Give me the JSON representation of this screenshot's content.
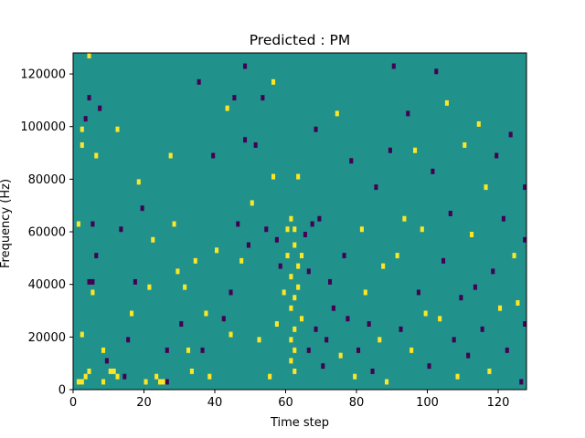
{
  "chart_data": {
    "type": "heatmap",
    "title": "Predicted : PM",
    "xlabel": "Time step",
    "ylabel": "Frequency (Hz)",
    "xlim": [
      0,
      128
    ],
    "ylim": [
      0,
      128000
    ],
    "x_ticks": [
      0,
      20,
      40,
      60,
      80,
      100,
      120
    ],
    "y_ticks": [
      0,
      20000,
      40000,
      60000,
      80000,
      100000,
      120000
    ],
    "y_tick_labels": [
      "0",
      "20000",
      "40000",
      "60000",
      "80000",
      "100000",
      "120000"
    ],
    "colormap": "viridis",
    "value_levels": [
      -1,
      0,
      1
    ],
    "colors": {
      "low": "#440154",
      "mid": "#21918c",
      "high": "#fde725"
    },
    "background_value": 0,
    "grid": false,
    "cells": [
      {
        "t": 1,
        "f": 2000,
        "v": 1
      },
      {
        "t": 2,
        "f": 2000,
        "v": 1
      },
      {
        "t": 3,
        "f": 4000,
        "v": 1
      },
      {
        "t": 4,
        "f": 6000,
        "v": 1
      },
      {
        "t": 4,
        "f": 40000,
        "v": -1
      },
      {
        "t": 5,
        "f": 40000,
        "v": -1
      },
      {
        "t": 4,
        "f": 126000,
        "v": 1
      },
      {
        "t": 2,
        "f": 20000,
        "v": 1
      },
      {
        "t": 1,
        "f": 62000,
        "v": 1
      },
      {
        "t": 2,
        "f": 92000,
        "v": 1
      },
      {
        "t": 2,
        "f": 98000,
        "v": 1
      },
      {
        "t": 3,
        "f": 102000,
        "v": -1
      },
      {
        "t": 4,
        "f": 110000,
        "v": -1
      },
      {
        "t": 5,
        "f": 36000,
        "v": 1
      },
      {
        "t": 5,
        "f": 62000,
        "v": -1
      },
      {
        "t": 6,
        "f": 50000,
        "v": -1
      },
      {
        "t": 6,
        "f": 88000,
        "v": 1
      },
      {
        "t": 7,
        "f": 106000,
        "v": -1
      },
      {
        "t": 8,
        "f": 2000,
        "v": 1
      },
      {
        "t": 8,
        "f": 14000,
        "v": 1
      },
      {
        "t": 9,
        "f": 10000,
        "v": -1
      },
      {
        "t": 10,
        "f": 6000,
        "v": 1
      },
      {
        "t": 11,
        "f": 6000,
        "v": 1
      },
      {
        "t": 12,
        "f": 4000,
        "v": 1
      },
      {
        "t": 12,
        "f": 98000,
        "v": 1
      },
      {
        "t": 13,
        "f": 60000,
        "v": -1
      },
      {
        "t": 14,
        "f": 4000,
        "v": -1
      },
      {
        "t": 15,
        "f": 18000,
        "v": -1
      },
      {
        "t": 16,
        "f": 28000,
        "v": 1
      },
      {
        "t": 17,
        "f": 40000,
        "v": -1
      },
      {
        "t": 18,
        "f": 78000,
        "v": 1
      },
      {
        "t": 19,
        "f": 68000,
        "v": -1
      },
      {
        "t": 20,
        "f": 2000,
        "v": 1
      },
      {
        "t": 21,
        "f": 38000,
        "v": 1
      },
      {
        "t": 22,
        "f": 56000,
        "v": 1
      },
      {
        "t": 23,
        "f": 4000,
        "v": 1
      },
      {
        "t": 24,
        "f": 2000,
        "v": 1
      },
      {
        "t": 25,
        "f": 2000,
        "v": 1
      },
      {
        "t": 26,
        "f": 2000,
        "v": -1
      },
      {
        "t": 26,
        "f": 14000,
        "v": -1
      },
      {
        "t": 27,
        "f": 88000,
        "v": 1
      },
      {
        "t": 28,
        "f": 62000,
        "v": 1
      },
      {
        "t": 29,
        "f": 44000,
        "v": 1
      },
      {
        "t": 30,
        "f": 24000,
        "v": -1
      },
      {
        "t": 31,
        "f": 38000,
        "v": 1
      },
      {
        "t": 32,
        "f": 14000,
        "v": 1
      },
      {
        "t": 33,
        "f": 6000,
        "v": 1
      },
      {
        "t": 34,
        "f": 48000,
        "v": 1
      },
      {
        "t": 35,
        "f": 116000,
        "v": -1
      },
      {
        "t": 36,
        "f": 14000,
        "v": -1
      },
      {
        "t": 37,
        "f": 28000,
        "v": 1
      },
      {
        "t": 38,
        "f": 4000,
        "v": 1
      },
      {
        "t": 39,
        "f": 88000,
        "v": -1
      },
      {
        "t": 40,
        "f": 52000,
        "v": 1
      },
      {
        "t": 42,
        "f": 26000,
        "v": -1
      },
      {
        "t": 43,
        "f": 106000,
        "v": 1
      },
      {
        "t": 44,
        "f": 20000,
        "v": 1
      },
      {
        "t": 44,
        "f": 36000,
        "v": -1
      },
      {
        "t": 45,
        "f": 110000,
        "v": -1
      },
      {
        "t": 46,
        "f": 62000,
        "v": -1
      },
      {
        "t": 47,
        "f": 48000,
        "v": 1
      },
      {
        "t": 48,
        "f": 94000,
        "v": -1
      },
      {
        "t": 48,
        "f": 122000,
        "v": -1
      },
      {
        "t": 49,
        "f": 54000,
        "v": -1
      },
      {
        "t": 50,
        "f": 70000,
        "v": 1
      },
      {
        "t": 51,
        "f": 92000,
        "v": -1
      },
      {
        "t": 52,
        "f": 18000,
        "v": 1
      },
      {
        "t": 53,
        "f": 110000,
        "v": -1
      },
      {
        "t": 54,
        "f": 60000,
        "v": -1
      },
      {
        "t": 55,
        "f": 4000,
        "v": 1
      },
      {
        "t": 56,
        "f": 80000,
        "v": 1
      },
      {
        "t": 56,
        "f": 116000,
        "v": 1
      },
      {
        "t": 57,
        "f": 24000,
        "v": 1
      },
      {
        "t": 57,
        "f": 56000,
        "v": -1
      },
      {
        "t": 58,
        "f": 46000,
        "v": -1
      },
      {
        "t": 59,
        "f": 36000,
        "v": 1
      },
      {
        "t": 60,
        "f": 50000,
        "v": 1
      },
      {
        "t": 60,
        "f": 60000,
        "v": 1
      },
      {
        "t": 61,
        "f": 10000,
        "v": 1
      },
      {
        "t": 61,
        "f": 18000,
        "v": 1
      },
      {
        "t": 61,
        "f": 30000,
        "v": 1
      },
      {
        "t": 61,
        "f": 42000,
        "v": 1
      },
      {
        "t": 61,
        "f": 64000,
        "v": 1
      },
      {
        "t": 62,
        "f": 6000,
        "v": 1
      },
      {
        "t": 62,
        "f": 14000,
        "v": 1
      },
      {
        "t": 62,
        "f": 22000,
        "v": 1
      },
      {
        "t": 62,
        "f": 34000,
        "v": 1
      },
      {
        "t": 62,
        "f": 54000,
        "v": 1
      },
      {
        "t": 62,
        "f": 60000,
        "v": 1
      },
      {
        "t": 63,
        "f": 38000,
        "v": 1
      },
      {
        "t": 63,
        "f": 46000,
        "v": 1
      },
      {
        "t": 63,
        "f": 80000,
        "v": 1
      },
      {
        "t": 64,
        "f": 26000,
        "v": 1
      },
      {
        "t": 64,
        "f": 50000,
        "v": 1
      },
      {
        "t": 65,
        "f": 58000,
        "v": -1
      },
      {
        "t": 66,
        "f": 14000,
        "v": -1
      },
      {
        "t": 66,
        "f": 44000,
        "v": -1
      },
      {
        "t": 67,
        "f": 62000,
        "v": -1
      },
      {
        "t": 68,
        "f": 22000,
        "v": -1
      },
      {
        "t": 68,
        "f": 98000,
        "v": -1
      },
      {
        "t": 69,
        "f": 64000,
        "v": -1
      },
      {
        "t": 70,
        "f": 8000,
        "v": -1
      },
      {
        "t": 71,
        "f": 18000,
        "v": -1
      },
      {
        "t": 72,
        "f": 40000,
        "v": -1
      },
      {
        "t": 73,
        "f": 30000,
        "v": -1
      },
      {
        "t": 74,
        "f": 104000,
        "v": 1
      },
      {
        "t": 75,
        "f": 12000,
        "v": 1
      },
      {
        "t": 76,
        "f": 50000,
        "v": -1
      },
      {
        "t": 77,
        "f": 26000,
        "v": -1
      },
      {
        "t": 78,
        "f": 86000,
        "v": -1
      },
      {
        "t": 79,
        "f": 4000,
        "v": 1
      },
      {
        "t": 80,
        "f": 14000,
        "v": -1
      },
      {
        "t": 81,
        "f": 60000,
        "v": 1
      },
      {
        "t": 82,
        "f": 36000,
        "v": 1
      },
      {
        "t": 83,
        "f": 24000,
        "v": -1
      },
      {
        "t": 84,
        "f": 6000,
        "v": -1
      },
      {
        "t": 85,
        "f": 76000,
        "v": -1
      },
      {
        "t": 86,
        "f": 18000,
        "v": 1
      },
      {
        "t": 87,
        "f": 46000,
        "v": 1
      },
      {
        "t": 88,
        "f": 2000,
        "v": 1
      },
      {
        "t": 89,
        "f": 90000,
        "v": -1
      },
      {
        "t": 90,
        "f": 122000,
        "v": -1
      },
      {
        "t": 91,
        "f": 50000,
        "v": 1
      },
      {
        "t": 92,
        "f": 22000,
        "v": -1
      },
      {
        "t": 93,
        "f": 64000,
        "v": 1
      },
      {
        "t": 94,
        "f": 104000,
        "v": -1
      },
      {
        "t": 95,
        "f": 14000,
        "v": 1
      },
      {
        "t": 96,
        "f": 90000,
        "v": 1
      },
      {
        "t": 97,
        "f": 36000,
        "v": -1
      },
      {
        "t": 98,
        "f": 60000,
        "v": 1
      },
      {
        "t": 99,
        "f": 28000,
        "v": 1
      },
      {
        "t": 100,
        "f": 8000,
        "v": -1
      },
      {
        "t": 101,
        "f": 82000,
        "v": -1
      },
      {
        "t": 102,
        "f": 120000,
        "v": -1
      },
      {
        "t": 103,
        "f": 26000,
        "v": 1
      },
      {
        "t": 104,
        "f": 48000,
        "v": -1
      },
      {
        "t": 105,
        "f": 108000,
        "v": 1
      },
      {
        "t": 106,
        "f": 66000,
        "v": -1
      },
      {
        "t": 107,
        "f": 18000,
        "v": -1
      },
      {
        "t": 108,
        "f": 4000,
        "v": 1
      },
      {
        "t": 109,
        "f": 34000,
        "v": -1
      },
      {
        "t": 110,
        "f": 92000,
        "v": 1
      },
      {
        "t": 111,
        "f": 12000,
        "v": -1
      },
      {
        "t": 112,
        "f": 58000,
        "v": 1
      },
      {
        "t": 113,
        "f": 38000,
        "v": -1
      },
      {
        "t": 114,
        "f": 100000,
        "v": 1
      },
      {
        "t": 115,
        "f": 22000,
        "v": -1
      },
      {
        "t": 116,
        "f": 76000,
        "v": 1
      },
      {
        "t": 117,
        "f": 6000,
        "v": 1
      },
      {
        "t": 118,
        "f": 44000,
        "v": -1
      },
      {
        "t": 119,
        "f": 88000,
        "v": -1
      },
      {
        "t": 120,
        "f": 30000,
        "v": 1
      },
      {
        "t": 121,
        "f": 64000,
        "v": -1
      },
      {
        "t": 122,
        "f": 14000,
        "v": -1
      },
      {
        "t": 123,
        "f": 96000,
        "v": -1
      },
      {
        "t": 124,
        "f": 50000,
        "v": 1
      },
      {
        "t": 125,
        "f": 32000,
        "v": 1
      },
      {
        "t": 126,
        "f": 2000,
        "v": -1
      },
      {
        "t": 127,
        "f": 24000,
        "v": -1
      },
      {
        "t": 127,
        "f": 56000,
        "v": -1
      },
      {
        "t": 127,
        "f": 76000,
        "v": -1
      }
    ]
  }
}
